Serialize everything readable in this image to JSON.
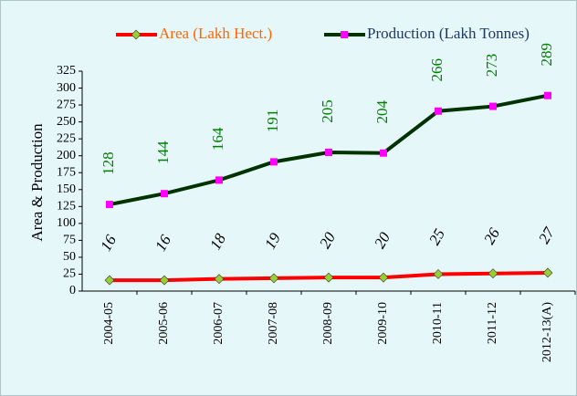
{
  "chart_data": {
    "type": "line",
    "y_label": "Area & Production",
    "categories": [
      "2004-05",
      "2005-06",
      "2006-07",
      "2007-08",
      "2008-09",
      "2009-10",
      "2010-11",
      "2011-12",
      "2012-13(A)"
    ],
    "series": [
      {
        "name": "Area (Lakh Hect.)",
        "color": "#ff0000",
        "marker_color": "#9acd32",
        "marker": "diamond",
        "values": [
          16,
          16,
          18,
          19,
          20,
          20,
          25,
          26,
          27
        ]
      },
      {
        "name": "Production (Lakh Tonnes)",
        "color": "#003300",
        "marker_color": "#ff00ff",
        "marker": "square",
        "values": [
          128,
          144,
          164,
          191,
          205,
          204,
          266,
          273,
          289
        ]
      }
    ],
    "ylim": [
      0,
      325
    ],
    "yticks": [
      0,
      25,
      50,
      75,
      100,
      125,
      150,
      175,
      200,
      225,
      250,
      275,
      300,
      325
    ],
    "grid": false
  }
}
